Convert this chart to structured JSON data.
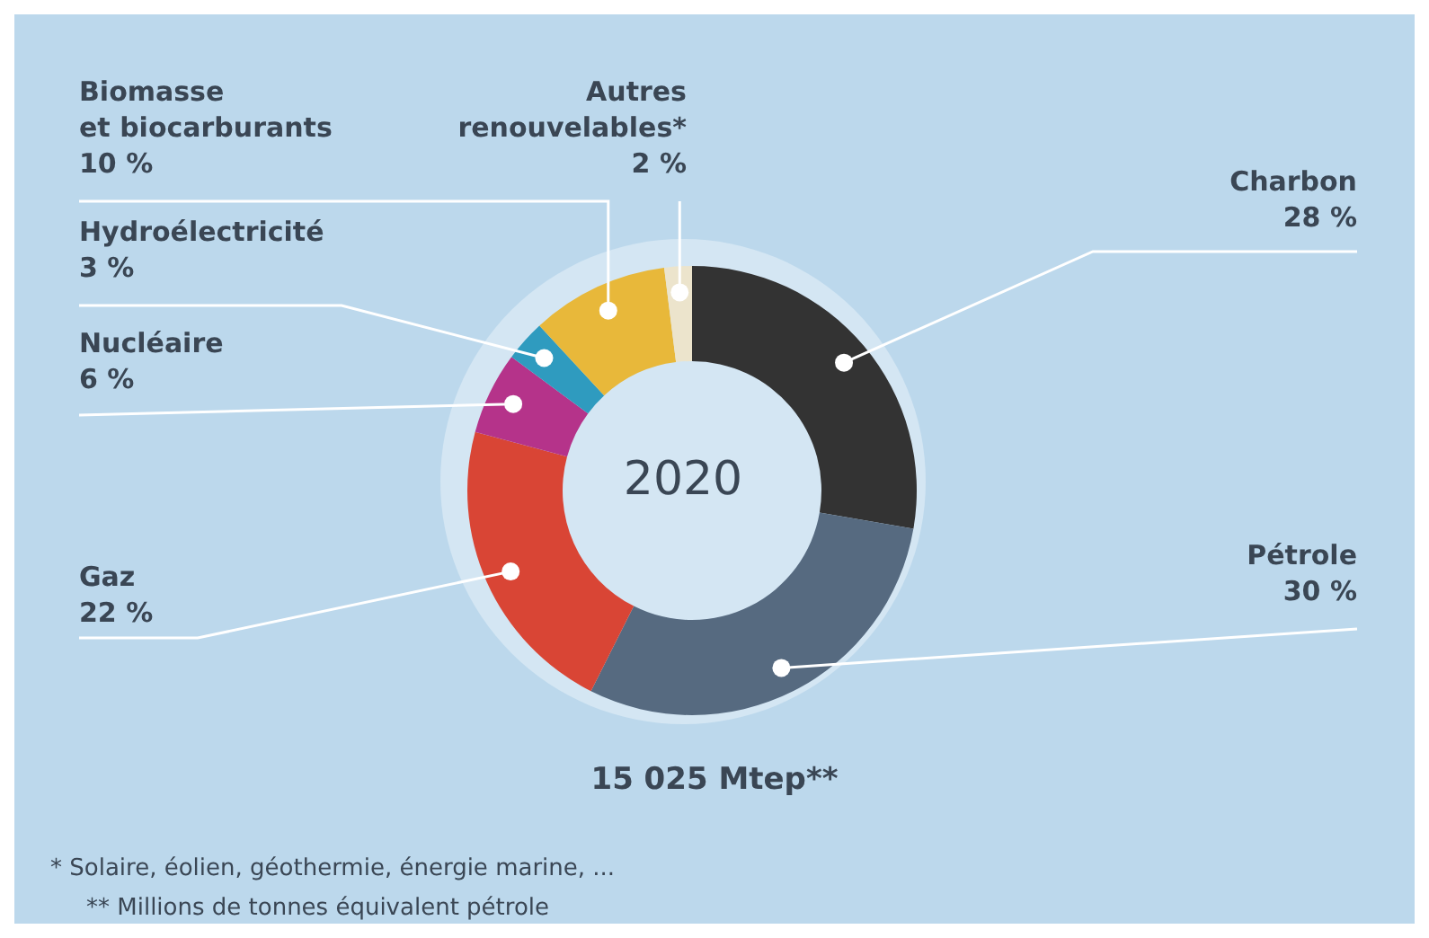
{
  "chart_data": {
    "type": "donut",
    "title": "2020",
    "categories": [
      "Charbon",
      "Pétrole",
      "Gaz",
      "Nucléaire",
      "Hydroélectricité",
      "Biomasse\net biocarburants",
      "Autres\nrenouvelables*"
    ],
    "values": [
      28,
      30,
      22,
      6,
      3,
      10,
      2
    ],
    "value_labels": [
      "28 %",
      "30 %",
      "22 %",
      "6 %",
      "3 %",
      "10 %",
      "2 %"
    ],
    "colors": [
      "#333333",
      "#566a80",
      "#d94535",
      "#b5338a",
      "#2f9bbf",
      "#e8b83a",
      "#ece4cc"
    ],
    "annotations": [
      "15 025 Mtep**",
      "* Solaire, éolien, géothermie, énergie marine, ...",
      "** Millions de tonnes équivalent pétrole"
    ]
  }
}
